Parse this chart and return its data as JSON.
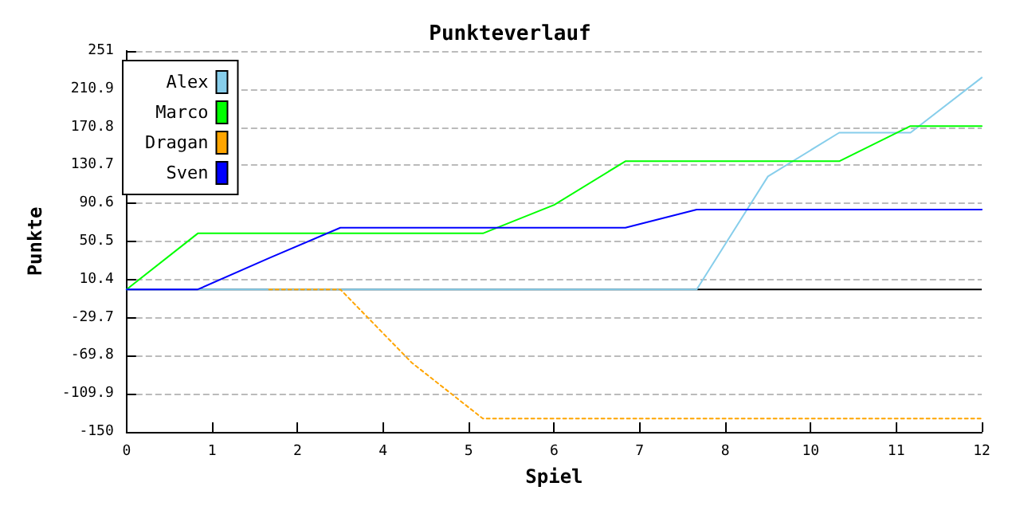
{
  "chart_data": {
    "type": "line",
    "title": "Punkteverlauf",
    "xlabel": "Spiel",
    "ylabel": "Punkte",
    "x": [
      0,
      1,
      2,
      3,
      4,
      5,
      6,
      7,
      8,
      9,
      10,
      11,
      12
    ],
    "series": [
      {
        "name": "Alex",
        "color": "#87ceeb",
        "values": [
          0,
          0,
          0,
          0,
          0,
          0,
          0,
          0,
          0,
          119,
          165,
          165,
          223
        ]
      },
      {
        "name": "Marco",
        "color": "#00ff00",
        "values": [
          0,
          59,
          59,
          59,
          59,
          59,
          89,
          135,
          135,
          135,
          135,
          172,
          172
        ]
      },
      {
        "name": "Dragan",
        "color": "#ffa500",
        "line_style": "dotted",
        "values": [
          null,
          null,
          0,
          0,
          -77,
          -136,
          -136,
          -136,
          -136,
          -136,
          -136,
          -136,
          -136
        ]
      },
      {
        "name": "Sven",
        "color": "#0000ff",
        "values": [
          0,
          0,
          33,
          65,
          65,
          65,
          65,
          65,
          84,
          84,
          84,
          84,
          84
        ]
      }
    ],
    "xlim": [
      0,
      12
    ],
    "xticks": [
      0,
      {
        "value": 1.2,
        "label": "1"
      },
      {
        "value": 2.4,
        "label": "2"
      },
      {
        "value": 3.6,
        "label": "4"
      },
      {
        "value": 4.8,
        "label": "5"
      },
      6,
      {
        "value": 7.2,
        "label": "7"
      },
      {
        "value": 8.4,
        "label": "8"
      },
      {
        "value": 9.6,
        "label": "10"
      },
      {
        "value": 10.8,
        "label": "11"
      },
      12
    ],
    "ylim": [
      -150,
      251
    ],
    "yticks": [
      -150,
      -109.9,
      -69.8,
      -29.7,
      10.4,
      50.5,
      90.6,
      130.7,
      170.8,
      210.9,
      251
    ],
    "ref_lines": [
      {
        "axis": "y",
        "value": 0,
        "color": "#000000"
      }
    ],
    "grid": "y",
    "legend": "top left",
    "marker": "none",
    "line_style": "solid"
  }
}
